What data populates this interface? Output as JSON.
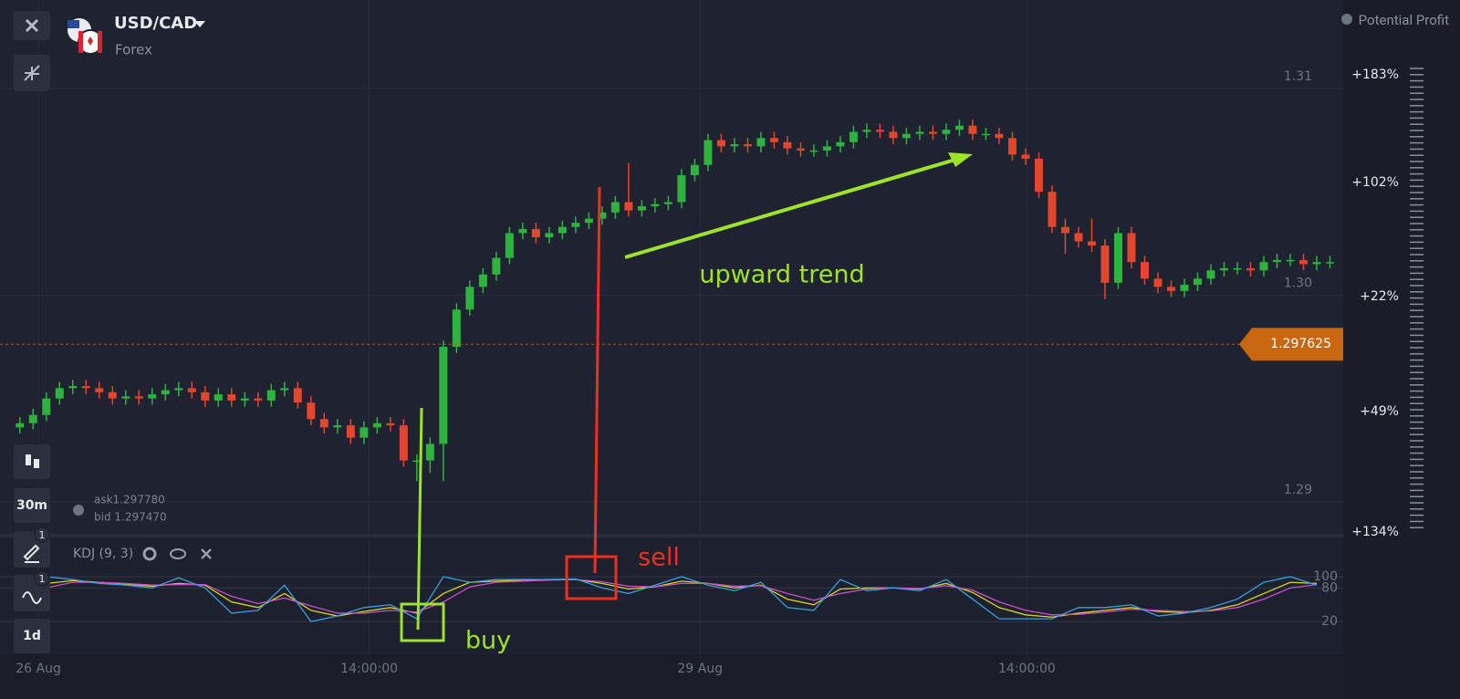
{
  "header": {
    "symbol": "USD/CAD",
    "market": "Forex",
    "ask": "ask1.297780",
    "bid": "bid 1.297470"
  },
  "toolbar": {
    "timeframe": "30m",
    "period": "1d",
    "badges": [
      1,
      1
    ]
  },
  "profit_panel": {
    "title": "Potential Profit",
    "labels": [
      "+183%",
      "+102%",
      "+22%",
      "+49%",
      "+134%"
    ]
  },
  "chart_data": [
    {
      "type": "candlestick",
      "up_color": "#2eb33e",
      "down_color": "#e2462c",
      "annotations": [
        "upward trend",
        "buy",
        "sell"
      ],
      "current_price": 1.297625,
      "xlim": [
        -1.5,
        100
      ],
      "xticks": [
        {
          "value": 1.4,
          "label": "26 Aug"
        },
        {
          "value": 26.4,
          "label": "14:00:00"
        },
        {
          "value": 51.4,
          "label": "29 Aug"
        },
        {
          "value": 76.1,
          "label": "14:00:00"
        }
      ],
      "ylim": [
        1.28845,
        1.31428
      ],
      "yticks": [
        1.29,
        {
          "value": 1.3,
          "label": "1.30"
        },
        1.31
      ],
      "open": [
        1.2936,
        1.2938,
        1.2942,
        1.295,
        1.2955,
        1.2956,
        1.2955,
        1.2953,
        1.295,
        1.2951,
        1.295,
        1.2952,
        1.2954,
        1.2955,
        1.2953,
        1.2949,
        1.2952,
        1.2949,
        1.295,
        1.2949,
        1.2954,
        1.2955,
        1.2948,
        1.294,
        1.2936,
        1.2937,
        1.2931,
        1.2936,
        1.2938,
        1.2937,
        1.292,
        1.292,
        1.2928,
        1.2975,
        1.2993,
        1.3004,
        1.301,
        1.3018,
        1.303,
        1.3032,
        1.3028,
        1.303,
        1.3033,
        1.3035,
        1.3037,
        1.304,
        1.3045,
        1.3041,
        1.3043,
        1.3044,
        1.3045,
        1.3058,
        1.3063,
        1.3075,
        1.3072,
        1.3073,
        1.3072,
        1.3076,
        1.3074,
        1.3071,
        1.307,
        1.307,
        1.3072,
        1.3074,
        1.3079,
        1.308,
        1.3079,
        1.3076,
        1.3078,
        1.3079,
        1.3078,
        1.308,
        1.3082,
        1.3078,
        1.3078,
        1.3076,
        1.3068,
        1.3066,
        1.305,
        1.3033,
        1.303,
        1.3026,
        1.3024,
        1.3006,
        1.303,
        1.3016,
        1.3008,
        1.3004,
        1.3002,
        1.3005,
        1.3008,
        1.3012,
        1.3013,
        1.3013,
        1.3012,
        1.3016,
        1.3017,
        1.3017,
        1.3015,
        1.3016
      ],
      "high": [
        1.2941,
        1.2945,
        1.2953,
        1.2958,
        1.2959,
        1.2959,
        1.2958,
        1.2956,
        1.2954,
        1.2954,
        1.2955,
        1.2957,
        1.2958,
        1.2958,
        1.2956,
        1.2955,
        1.2955,
        1.2953,
        1.2953,
        1.2957,
        1.2958,
        1.2958,
        1.2951,
        1.2943,
        1.294,
        1.294,
        1.2939,
        1.2941,
        1.2941,
        1.294,
        1.2923,
        1.2931,
        1.2978,
        1.2996,
        1.3007,
        1.3013,
        1.3021,
        1.3033,
        1.3035,
        1.3035,
        1.3033,
        1.3036,
        1.3038,
        1.304,
        1.3043,
        1.3048,
        1.3064,
        1.3046,
        1.3047,
        1.3048,
        1.3061,
        1.3066,
        1.3078,
        1.3078,
        1.3076,
        1.3076,
        1.3079,
        1.3079,
        1.3077,
        1.3074,
        1.3073,
        1.3075,
        1.3077,
        1.3082,
        1.3083,
        1.3083,
        1.3082,
        1.3081,
        1.3082,
        1.3082,
        1.3083,
        1.3085,
        1.3085,
        1.3081,
        1.3081,
        1.3079,
        1.3071,
        1.3069,
        1.3053,
        1.3037,
        1.3033,
        1.3037,
        1.3027,
        1.3033,
        1.3033,
        1.3019,
        1.3011,
        1.3007,
        1.3008,
        1.3011,
        1.3015,
        1.3016,
        1.3016,
        1.3016,
        1.3019,
        1.302,
        1.302,
        1.302,
        1.3019,
        1.3019
      ],
      "low": [
        1.2933,
        1.2935,
        1.2939,
        1.2947,
        1.2952,
        1.2952,
        1.295,
        1.2947,
        1.2947,
        1.2947,
        1.2947,
        1.2949,
        1.2951,
        1.295,
        1.2946,
        1.2946,
        1.2946,
        1.2946,
        1.2946,
        1.2946,
        1.2951,
        1.2945,
        1.2937,
        1.2933,
        1.2933,
        1.2928,
        1.2928,
        1.2933,
        1.2934,
        1.2917,
        1.291,
        1.2914,
        1.291,
        1.2972,
        1.299,
        1.3001,
        1.3007,
        1.3015,
        1.3027,
        1.3025,
        1.3025,
        1.3027,
        1.303,
        1.3032,
        1.3034,
        1.3037,
        1.3038,
        1.3038,
        1.304,
        1.3041,
        1.3042,
        1.3055,
        1.306,
        1.3069,
        1.3069,
        1.3069,
        1.3069,
        1.3071,
        1.3068,
        1.3067,
        1.3067,
        1.3067,
        1.3069,
        1.3071,
        1.3076,
        1.3076,
        1.3073,
        1.3073,
        1.3075,
        1.3075,
        1.3075,
        1.3077,
        1.3075,
        1.3075,
        1.3073,
        1.3065,
        1.3063,
        1.3047,
        1.303,
        1.302,
        1.3023,
        1.3021,
        1.2998,
        1.3003,
        1.3013,
        1.3005,
        1.3001,
        1.2999,
        1.2999,
        1.3002,
        1.3005,
        1.3009,
        1.301,
        1.3009,
        1.3009,
        1.3013,
        1.3014,
        1.3012,
        1.3012,
        1.3013
      ],
      "close": [
        1.2938,
        1.2942,
        1.295,
        1.2955,
        1.2956,
        1.2955,
        1.2953,
        1.295,
        1.2951,
        1.295,
        1.2952,
        1.2954,
        1.2955,
        1.2953,
        1.2949,
        1.2952,
        1.2949,
        1.295,
        1.2949,
        1.2954,
        1.2955,
        1.2948,
        1.294,
        1.2936,
        1.2937,
        1.2931,
        1.2936,
        1.2938,
        1.2937,
        1.292,
        1.292,
        1.2928,
        1.2975,
        1.2993,
        1.3004,
        1.301,
        1.3018,
        1.303,
        1.3032,
        1.3028,
        1.303,
        1.3033,
        1.3035,
        1.3037,
        1.304,
        1.3045,
        1.3041,
        1.3043,
        1.3044,
        1.3045,
        1.3058,
        1.3063,
        1.3075,
        1.3072,
        1.3073,
        1.3072,
        1.3076,
        1.3074,
        1.3071,
        1.307,
        1.307,
        1.3072,
        1.3074,
        1.3079,
        1.308,
        1.3079,
        1.3076,
        1.3078,
        1.3079,
        1.3078,
        1.308,
        1.3082,
        1.3078,
        1.3078,
        1.3076,
        1.3068,
        1.3066,
        1.305,
        1.3033,
        1.303,
        1.3026,
        1.3024,
        1.3006,
        1.303,
        1.3016,
        1.3008,
        1.3004,
        1.3002,
        1.3005,
        1.3008,
        1.3012,
        1.3013,
        1.3013,
        1.3012,
        1.3016,
        1.3017,
        1.3017,
        1.3015,
        1.3016,
        1.3016
      ]
    },
    {
      "type": "line",
      "title": "KDJ (9, 3)",
      "xlim": [
        -1.5,
        100
      ],
      "ylim": [
        -35,
        152
      ],
      "yticks": [
        20,
        80,
        100
      ],
      "x": [
        0,
        2,
        4,
        6,
        8,
        10,
        12,
        14,
        16,
        18,
        20,
        22,
        24,
        26,
        28,
        30,
        32,
        34,
        36,
        38,
        40,
        42,
        44,
        46,
        48,
        50,
        52,
        54,
        56,
        58,
        60,
        62,
        64,
        66,
        68,
        70,
        72,
        74,
        76,
        78,
        80,
        82,
        84,
        86,
        88,
        90,
        92,
        94,
        96,
        98
      ],
      "series": [
        {
          "name": "K",
          "color": "#d9d424",
          "values": [
            60,
            88,
            93,
            90,
            87,
            83,
            88,
            85,
            55,
            45,
            70,
            40,
            30,
            38,
            45,
            35,
            70,
            90,
            92,
            94,
            95,
            95,
            88,
            78,
            82,
            92,
            88,
            80,
            85,
            60,
            50,
            78,
            80,
            80,
            78,
            88,
            72,
            45,
            32,
            28,
            35,
            40,
            45,
            38,
            36,
            40,
            50,
            70,
            90,
            88
          ]
        },
        {
          "name": "D",
          "color": "#c94fc9",
          "values": [
            55,
            80,
            90,
            90,
            88,
            85,
            86,
            86,
            65,
            52,
            62,
            48,
            35,
            35,
            40,
            37,
            55,
            82,
            90,
            92,
            94,
            95,
            91,
            83,
            82,
            88,
            88,
            83,
            84,
            70,
            58,
            70,
            78,
            80,
            79,
            84,
            76,
            55,
            40,
            32,
            33,
            37,
            42,
            40,
            38,
            39,
            45,
            60,
            80,
            86
          ]
        },
        {
          "name": "J",
          "color": "#3a9ee0",
          "values": [
            70,
            100,
            95,
            88,
            85,
            80,
            98,
            80,
            35,
            40,
            85,
            20,
            30,
            45,
            50,
            25,
            100,
            90,
            95,
            95,
            95,
            96,
            80,
            70,
            85,
            100,
            85,
            75,
            90,
            45,
            40,
            95,
            75,
            80,
            75,
            95,
            60,
            25,
            25,
            25,
            45,
            45,
            50,
            30,
            35,
            45,
            60,
            90,
            100,
            85
          ]
        }
      ]
    }
  ]
}
